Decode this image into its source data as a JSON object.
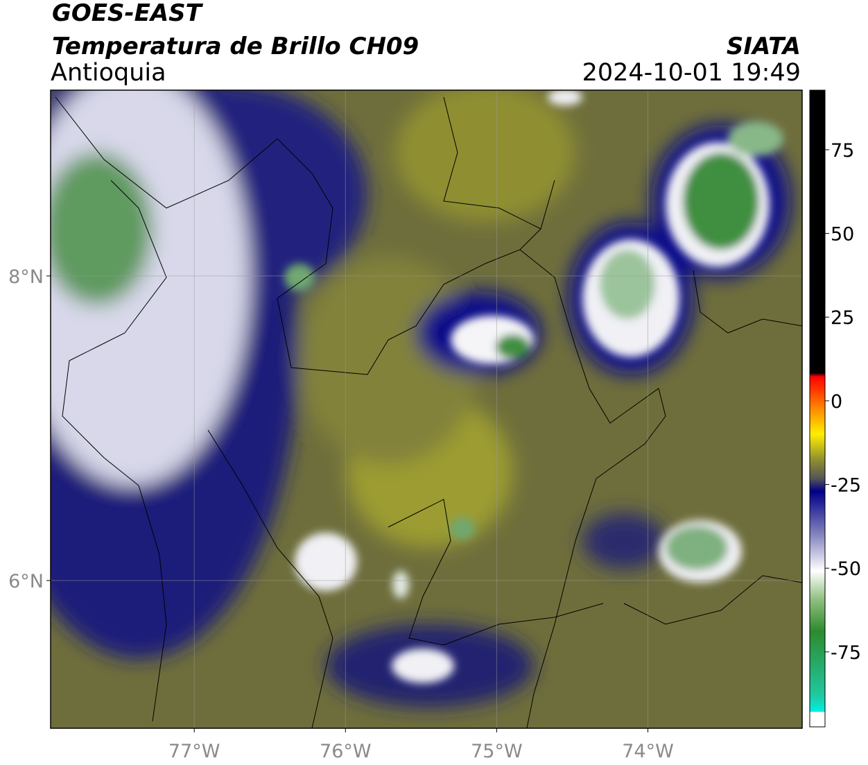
{
  "header": {
    "title": "GOES-EAST",
    "subtitle": "Temperatura de Brillo CH09",
    "region": "Antioquia",
    "source": "SIATA",
    "datetime": "2024-10-01 19:49"
  },
  "map": {
    "xlim": [
      -77.95,
      -72.98
    ],
    "ylim": [
      5.03,
      9.22
    ],
    "xticks": [
      {
        "value": -77,
        "label": "77°W"
      },
      {
        "value": -76,
        "label": "76°W"
      },
      {
        "value": -75,
        "label": "75°W"
      },
      {
        "value": -74,
        "label": "74°W"
      }
    ],
    "yticks": [
      {
        "value": 8,
        "label": "8°N"
      },
      {
        "value": 6,
        "label": "6°N"
      }
    ]
  },
  "colorbar": {
    "lim": [
      -97.4,
      92.8
    ],
    "ticks": [
      75,
      50,
      25,
      0,
      -25,
      -50,
      -75
    ]
  }
}
